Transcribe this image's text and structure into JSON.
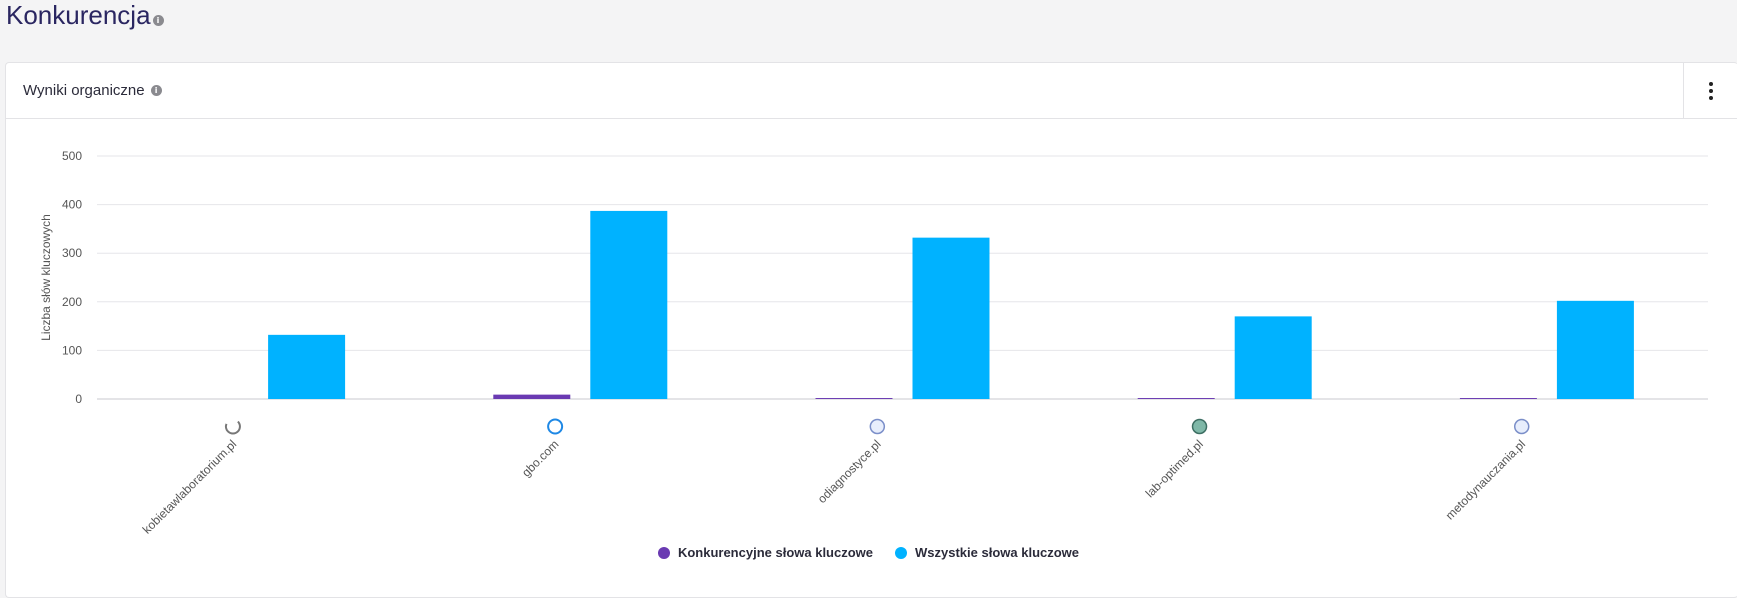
{
  "page": {
    "title": "Konkurencja",
    "info_icon": "info-icon"
  },
  "card": {
    "title": "Wyniki organiczne",
    "menu_icon": "more-vertical-icon"
  },
  "chart_data": {
    "type": "bar",
    "categories": [
      "kobietawlaboratorium.pl",
      "gbo.com",
      "odiagnostyce.pl",
      "lab-optimed.pl",
      "metodynauczania.pl"
    ],
    "category_icons": [
      "spinner-icon",
      "rocket-icon",
      "globe-icon",
      "pill-icon",
      "globe-icon"
    ],
    "series": [
      {
        "name": "Konkurencyjne słowa kluczowe",
        "color": "#6a3ab2",
        "values": [
          0,
          9,
          2,
          2,
          2
        ]
      },
      {
        "name": "Wszystkie słowa kluczowe",
        "color": "#00b2ff",
        "values": [
          132,
          387,
          332,
          170,
          202
        ]
      }
    ],
    "ylabel": "Liczba słów kluczowych",
    "yticks": [
      0,
      100,
      200,
      300,
      400,
      500
    ],
    "ylim": [
      0,
      500
    ],
    "grid": true,
    "legend": "bottom-center"
  }
}
